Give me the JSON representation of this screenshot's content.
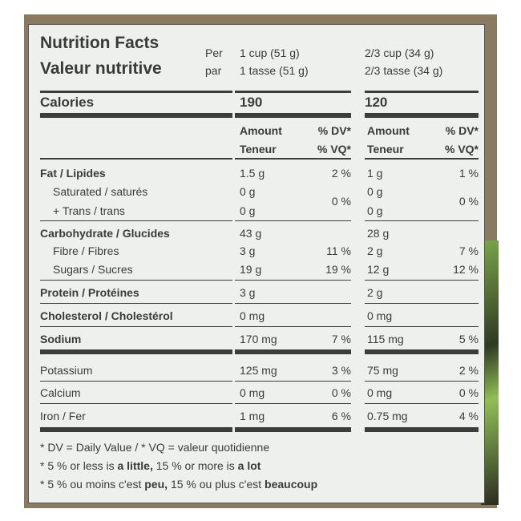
{
  "title_en": "Nutrition Facts",
  "title_fr": "Valeur nutritive",
  "per_en": "Per",
  "per_fr": "par",
  "serving1_en": "1 cup (51 g)",
  "serving1_fr": "1 tasse (51 g)",
  "serving2_en": "2/3 cup (34 g)",
  "serving2_fr": "2/3 tasse (34 g)",
  "calories_label": "Calories",
  "calories1": "190",
  "calories2": "120",
  "amount_en": "Amount",
  "amount_fr": "Teneur",
  "dv_en": "% DV*",
  "dv_fr": "% VQ*",
  "rows": [
    {
      "label": "Fat / Lipides",
      "bold": true,
      "a1": "1.5 g",
      "d1": "2 %",
      "a2": "1 g",
      "d2": "1 %"
    },
    {
      "label": "Saturated / saturés",
      "indent": true,
      "a1": "0 g",
      "d1": "0 %",
      "a2": "0 g",
      "d2": "0 %"
    },
    {
      "label": "+ Trans / trans",
      "indent": true,
      "a1": "0 g",
      "d1": "",
      "a2": "0 g",
      "d2": ""
    },
    {
      "label": "Carbohydrate / Glucides",
      "bold": true,
      "a1": "43 g",
      "d1": "",
      "a2": "28 g",
      "d2": ""
    },
    {
      "label": "Fibre / Fibres",
      "indent": true,
      "a1": "3 g",
      "d1": "11 %",
      "a2": "2 g",
      "d2": "7 %"
    },
    {
      "label": "Sugars / Sucres",
      "indent": true,
      "a1": "19 g",
      "d1": "19 %",
      "a2": "12 g",
      "d2": "12 %"
    },
    {
      "label": "Protein / Protéines",
      "bold": true,
      "a1": "3 g",
      "d1": "",
      "a2": "2 g",
      "d2": ""
    },
    {
      "label": "Cholesterol / Cholestérol",
      "bold": true,
      "a1": "0 mg",
      "d1": "",
      "a2": "0 mg",
      "d2": ""
    },
    {
      "label": "Sodium",
      "bold": true,
      "a1": "170 mg",
      "d1": "7 %",
      "a2": "115 mg",
      "d2": "5 %"
    },
    {
      "label": "Potassium",
      "a1": "125 mg",
      "d1": "3 %",
      "a2": "75 mg",
      "d2": "2 %"
    },
    {
      "label": "Calcium",
      "a1": "0 mg",
      "d1": "0 %",
      "a2": "0 mg",
      "d2": "0 %"
    },
    {
      "label": "Iron / Fer",
      "a1": "1 mg",
      "d1": "6 %",
      "a2": "0.75 mg",
      "d2": "4 %"
    }
  ],
  "footnote1": "* DV = Daily Value / * VQ = valeur quotidienne",
  "footnote2_pre": "* 5 % or less is ",
  "footnote2_b1": "a little,",
  "footnote2_mid": " 15 % or more is ",
  "footnote2_b2": "a lot",
  "footnote3_pre": "* 5 % ou moins c'est ",
  "footnote3_b1": "peu,",
  "footnote3_mid": " 15 % ou plus c'est ",
  "footnote3_b2": "beaucoup"
}
